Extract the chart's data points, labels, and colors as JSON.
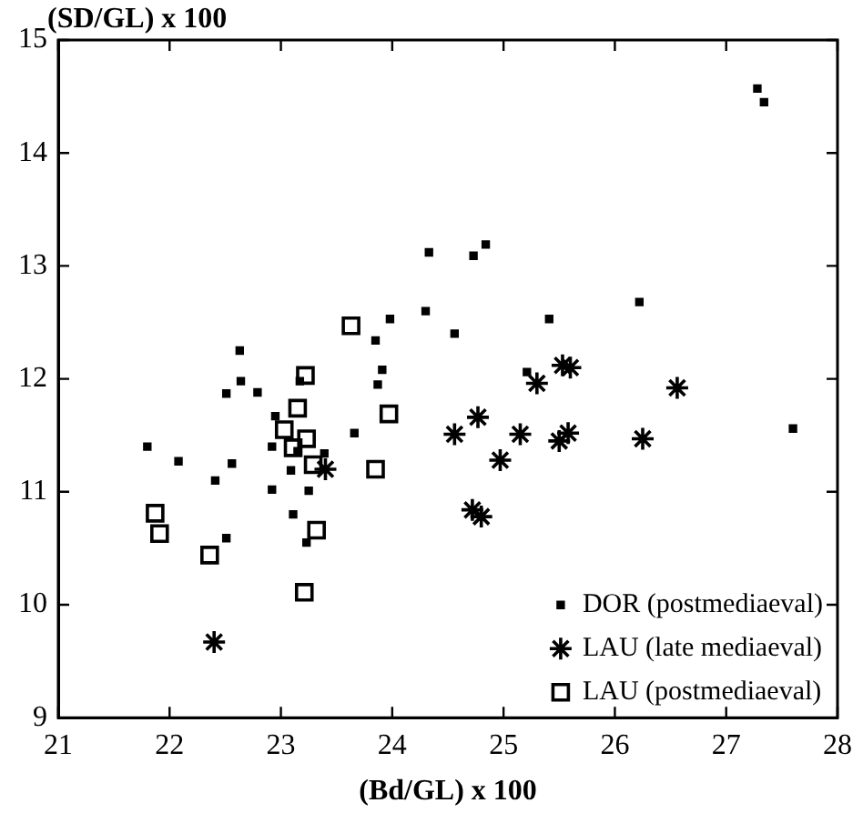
{
  "chart_data": {
    "type": "scatter",
    "xlabel": "(Bd/GL) x 100",
    "ylabel": "(SD/GL) x 100",
    "xlim": [
      21,
      28
    ],
    "xticks": [
      21,
      22,
      23,
      24,
      25,
      26,
      27,
      28
    ],
    "ylim": [
      9,
      15
    ],
    "yticks": [
      9,
      10,
      11,
      12,
      13,
      14,
      15
    ],
    "grid": false,
    "legend": "bottom right",
    "series": [
      {
        "name": "DOR (postmediaeval)",
        "color": "#000000",
        "marker": "square",
        "x": [
          22.63,
          22.64,
          22.51,
          22.79,
          22.95,
          21.8,
          22.08,
          22.56,
          22.41,
          22.92,
          22.92,
          23.09,
          23.25,
          23.11,
          23.23,
          22.51,
          23.17,
          23.39,
          23.66,
          23.15,
          24.33,
          24.73,
          24.84,
          23.98,
          23.85,
          24.3,
          24.56,
          25.41,
          23.91,
          23.87,
          25.21,
          27.28,
          27.34,
          26.22,
          27.6
        ],
        "values": [
          12.25,
          11.98,
          11.87,
          11.88,
          11.67,
          11.4,
          11.27,
          11.25,
          11.1,
          11.4,
          11.02,
          11.19,
          11.01,
          10.8,
          10.55,
          10.59,
          11.98,
          11.34,
          11.52,
          11.36,
          13.12,
          13.09,
          13.19,
          12.53,
          12.34,
          12.6,
          12.4,
          12.53,
          12.08,
          11.95,
          12.06,
          14.57,
          14.45,
          12.68,
          11.56
        ]
      },
      {
        "name": "LAU (late mediaeval)",
        "color": "#000000",
        "marker": "cross",
        "x": [
          22.4,
          23.4,
          24.56,
          24.77,
          24.97,
          24.72,
          24.8,
          25.15,
          25.3,
          25.53,
          25.6,
          25.5,
          25.58,
          26.25,
          26.56
        ],
        "values": [
          9.67,
          11.2,
          11.51,
          11.66,
          11.28,
          10.84,
          10.78,
          11.51,
          11.96,
          12.12,
          12.1,
          11.45,
          11.52,
          11.47,
          11.92
        ]
      },
      {
        "name": "LAU (postmediaeval)",
        "color": "#000000",
        "marker": "square",
        "x": [
          23.63,
          23.22,
          23.15,
          23.03,
          23.23,
          23.11,
          23.29,
          21.87,
          21.91,
          22.36,
          23.32,
          23.21,
          23.97,
          23.85
        ],
        "values": [
          12.47,
          12.03,
          11.74,
          11.55,
          11.47,
          11.39,
          11.24,
          10.81,
          10.63,
          10.44,
          10.66,
          10.11,
          11.69,
          11.2
        ]
      }
    ]
  }
}
